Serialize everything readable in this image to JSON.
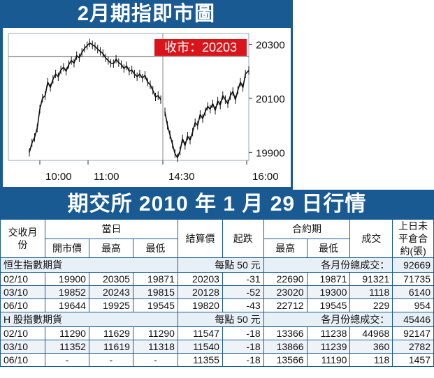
{
  "chart_title": "2月期指即市圖",
  "close_badge": "收市：20203",
  "chart_data": {
    "type": "line",
    "title": "2月期指即市圖",
    "annotation": "收市：20203",
    "x_ticks": [
      "10:00",
      "11:00",
      "14:30",
      "16:00"
    ],
    "y_ticks": [
      20300,
      20100,
      19900
    ],
    "ylim": [
      19870,
      20340
    ],
    "reference_line": 20254,
    "segments": [
      {
        "session": "morning",
        "x": [
          0,
          2,
          4,
          6,
          8,
          10,
          12,
          14,
          16,
          18,
          20,
          22,
          24,
          26,
          28,
          30,
          32,
          34,
          36,
          38,
          40,
          42,
          44,
          46,
          48,
          50,
          52,
          54,
          56,
          58,
          60,
          62,
          64,
          66,
          68,
          70,
          72,
          74,
          76,
          78,
          80,
          82,
          84,
          86,
          88,
          90,
          92,
          94,
          96,
          98,
          100
        ],
        "y": [
          19900,
          19935,
          19955,
          19990,
          20060,
          20100,
          20110,
          20160,
          20140,
          20170,
          20190,
          20180,
          20205,
          20215,
          20200,
          20225,
          20240,
          20230,
          20258,
          20250,
          20270,
          20285,
          20295,
          20305,
          20298,
          20292,
          20282,
          20274,
          20266,
          20250,
          20240,
          20230,
          20228,
          20245,
          20232,
          20225,
          20210,
          20220,
          20200,
          20205,
          20190,
          20180,
          20190,
          20175,
          20185,
          20160,
          20150,
          20130,
          20105,
          20110,
          20095
        ]
      },
      {
        "session": "afternoon",
        "x": [
          0,
          3,
          6,
          9,
          12,
          15,
          18,
          21,
          24,
          27,
          30,
          33,
          36,
          39,
          42,
          45,
          48,
          51,
          54,
          57,
          60,
          63,
          66,
          69,
          72,
          75,
          78,
          81,
          84,
          87,
          90,
          93,
          96,
          100
        ],
        "y": [
          20050,
          20000,
          19965,
          19930,
          19895,
          19880,
          19905,
          19950,
          19925,
          19960,
          19945,
          19975,
          20010,
          20000,
          20040,
          20025,
          20050,
          20070,
          20060,
          20080,
          20055,
          20090,
          20075,
          20110,
          20095,
          20080,
          20110,
          20125,
          20095,
          20130,
          20160,
          20140,
          20190,
          20203
        ]
      }
    ]
  },
  "table_title": "期交所 2010 年 1 月 29 日行情",
  "headers": {
    "contract_month": "交收月份",
    "day": "當日",
    "open": "開市價",
    "high": "最高",
    "low": "最低",
    "settle": "結算價",
    "change": "起跌",
    "contract_period": "合約期",
    "period_high": "最高",
    "period_low": "最低",
    "volume": "成交",
    "open_interest": "上日未平倉合約(張)"
  },
  "sections": [
    {
      "name": "恒生指數期貨",
      "point_value": "每點 50 元",
      "total_label": "各月份總成交：",
      "total": "92669",
      "rows": [
        {
          "month": "02/10",
          "open": "19900",
          "high": "20305",
          "low": "19871",
          "settle": "20203",
          "change": "-31",
          "phigh": "22690",
          "plow": "19871",
          "volume": "91321",
          "oi": "71735"
        },
        {
          "month": "03/10",
          "open": "19852",
          "high": "20243",
          "low": "19815",
          "settle": "20128",
          "change": "-52",
          "phigh": "23020",
          "plow": "19300",
          "volume": "1118",
          "oi": "6140"
        },
        {
          "month": "06/10",
          "open": "19644",
          "high": "19925",
          "low": "19545",
          "settle": "19820",
          "change": "-43",
          "phigh": "22712",
          "plow": "19545",
          "volume": "229",
          "oi": "954"
        }
      ]
    },
    {
      "name": "H 股指數期貨",
      "point_value": "每點 50 元",
      "total_label": "各月份總成交：",
      "total": "45446",
      "rows": [
        {
          "month": "02/10",
          "open": "11290",
          "high": "11629",
          "low": "11290",
          "settle": "11547",
          "change": "-18",
          "phigh": "13366",
          "plow": "11238",
          "volume": "44968",
          "oi": "92147"
        },
        {
          "month": "03/10",
          "open": "11352",
          "high": "11619",
          "low": "11318",
          "settle": "11540",
          "change": "-18",
          "phigh": "13866",
          "plow": "11239",
          "volume": "360",
          "oi": "2782"
        },
        {
          "month": "06/10",
          "open": "-",
          "high": "-",
          "low": "-",
          "settle": "11355",
          "change": "-18",
          "phigh": "13566",
          "plow": "11190",
          "volume": "118",
          "oi": "1457"
        }
      ]
    }
  ]
}
